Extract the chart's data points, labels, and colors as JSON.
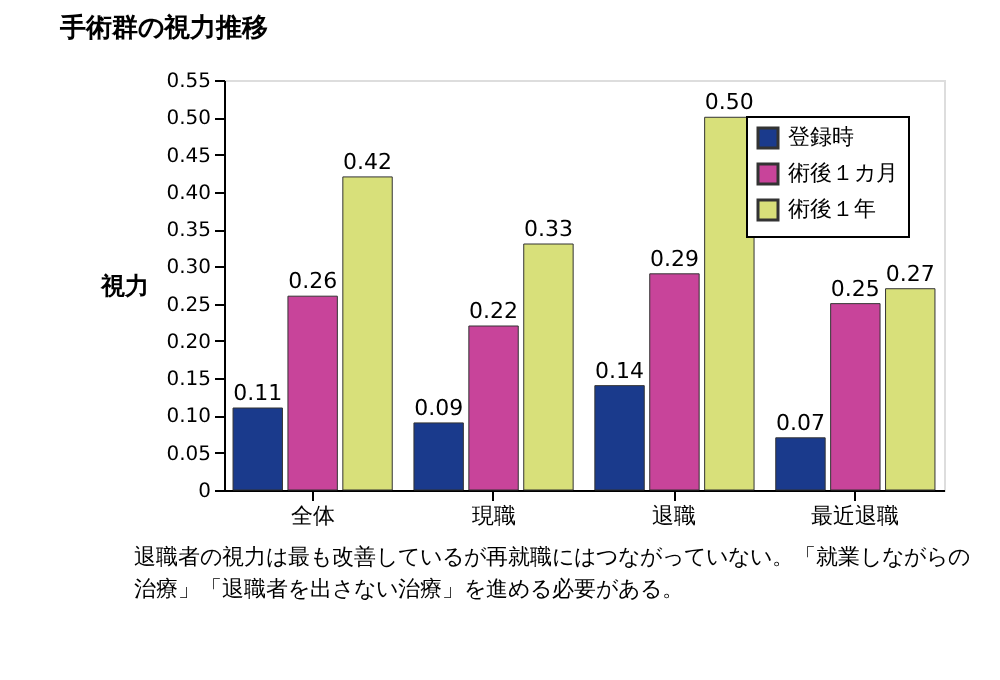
{
  "chart_data": {
    "type": "bar",
    "title": "手術群の視力推移",
    "ylabel": "視力",
    "categories": [
      "全体",
      "現職",
      "退職",
      "最近退職"
    ],
    "series": [
      {
        "name": "登録時",
        "color": "#1a3a8c",
        "values": [
          0.11,
          0.09,
          0.14,
          0.07
        ]
      },
      {
        "name": "術後１カ月",
        "color": "#c8449a",
        "values": [
          0.26,
          0.22,
          0.29,
          0.25
        ]
      },
      {
        "name": "術後１年",
        "color": "#d8e07a",
        "values": [
          0.42,
          0.33,
          0.5,
          0.27
        ]
      }
    ],
    "ylim": [
      0,
      0.55
    ],
    "yticks": [
      0,
      {
        "value": 0.05,
        "label": "0.05"
      },
      {
        "value": 0.1,
        "label": "0.10"
      },
      {
        "value": 0.15,
        "label": "0.15"
      },
      {
        "value": 0.2,
        "label": "0.20"
      },
      {
        "value": 0.25,
        "label": "0.25"
      },
      {
        "value": 0.3,
        "label": "0.30"
      },
      {
        "value": 0.35,
        "label": "0.35"
      },
      {
        "value": 0.4,
        "label": "0.40"
      },
      {
        "value": 0.45,
        "label": "0.45"
      },
      {
        "value": 0.5,
        "label": "0.50"
      },
      {
        "value": 0.55,
        "label": "0.55"
      }
    ],
    "value_labels": [
      [
        "0.11",
        "0.09",
        "0.14",
        "0.07"
      ],
      [
        "0.26",
        "0.22",
        "0.29",
        "0.25"
      ],
      [
        "0.42",
        "0.33",
        "0.50",
        "0.27"
      ]
    ],
    "legend": "top right",
    "grid": false,
    "annotations": [
      "退職者の視力は最も改善しているが再就職にはつながっていない。「就業しながらの治療」「退職者を出さない治療」を進める必要がある。"
    ]
  }
}
